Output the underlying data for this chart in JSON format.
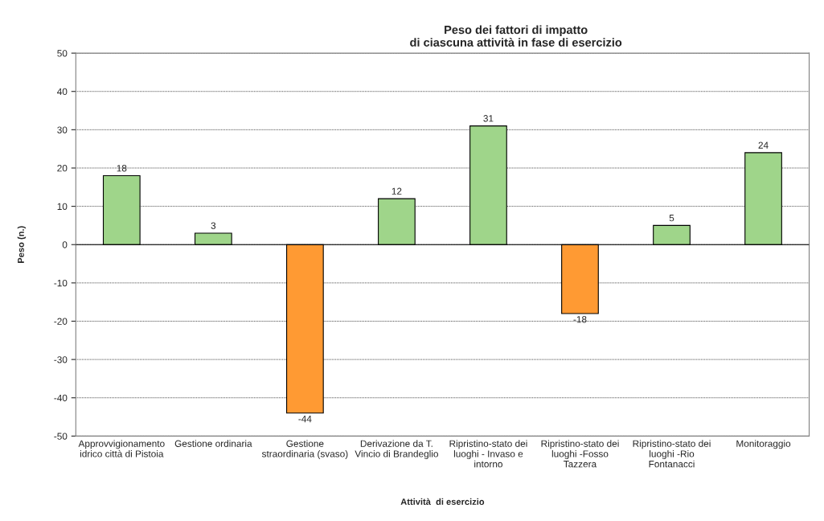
{
  "chart_data": {
    "type": "bar",
    "title": "Peso dei fattori di impatto\ndi ciascuna attività in fase di esercizio",
    "xlabel": "Attività  di esercizio",
    "ylabel": "Peso (n.)",
    "categories": [
      "Approvvigionamento\nidrico città di Pistoia",
      "Gestione ordinaria",
      "Gestione\nstraordinaria (svaso)",
      "Derivazione da T.\nVincio di Brandeglio",
      "Ripristino-stato dei\nluoghi - Invaso e\nintorno",
      "Ripristino-stato dei\nluoghi -Fosso\nTazzera",
      "Ripristino-stato dei\nluoghi -Rio\nFontanacci",
      "Monitoraggio"
    ],
    "values": [
      18,
      3,
      -44,
      12,
      31,
      -18,
      5,
      24
    ],
    "colors": [
      "#9fd58a",
      "#9fd58a",
      "#ff9a33",
      "#9fd58a",
      "#9fd58a",
      "#ff9a33",
      "#9fd58a",
      "#9fd58a"
    ],
    "ylim": [
      -50,
      50
    ],
    "yticks": [
      -50,
      -40,
      -30,
      -20,
      -10,
      0,
      10,
      20,
      30,
      40,
      50
    ],
    "grid": "y",
    "data_labels": true
  }
}
